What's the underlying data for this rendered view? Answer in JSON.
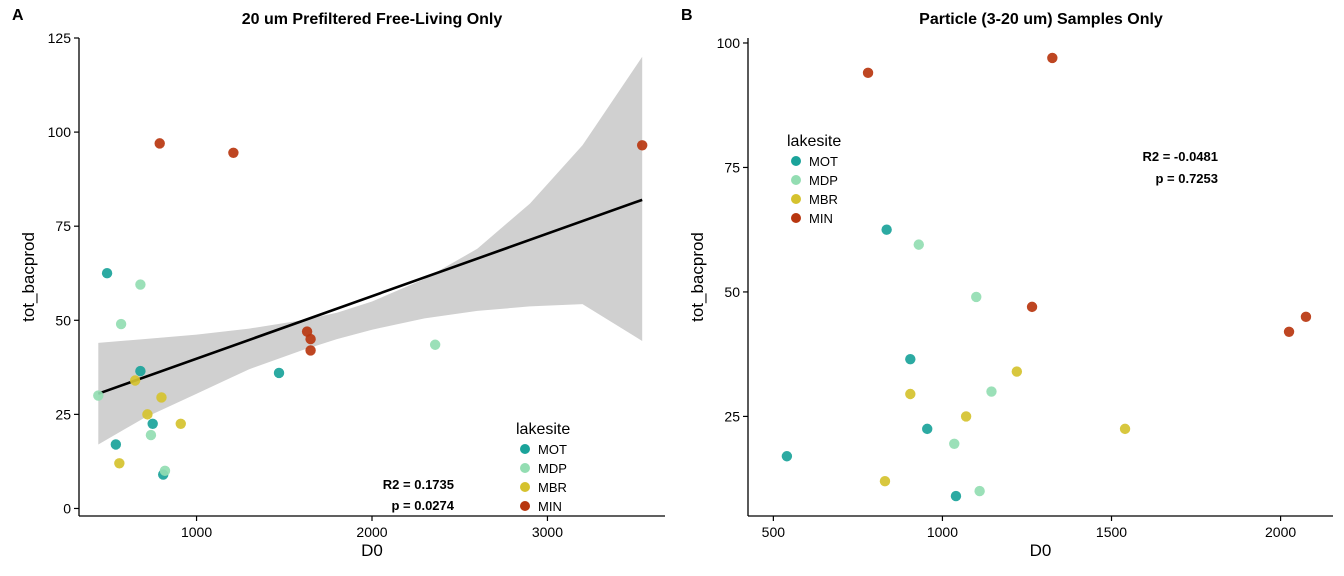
{
  "chart_data": [
    {
      "panel_tag": "A",
      "type": "scatter",
      "title": "20 um Prefiltered Free-Living Only",
      "xlabel": "D0",
      "ylabel": "tot_bacprod",
      "xlim": [
        330,
        3670
      ],
      "ylim": [
        -2,
        125
      ],
      "xticks": [
        1000,
        2000,
        3000
      ],
      "yticks": [
        0,
        25,
        50,
        75,
        100,
        125
      ],
      "grid": false,
      "legend": {
        "title": "lakesite",
        "placement": "bottom-right",
        "entries": [
          {
            "name": "MOT",
            "color": "#1AA39A"
          },
          {
            "name": "MDP",
            "color": "#93DDB2"
          },
          {
            "name": "MBR",
            "color": "#D5C22E"
          },
          {
            "name": "MIN",
            "color": "#B8360F"
          }
        ]
      },
      "annotations": [
        "R2 = 0.1735",
        "p = 0.0274"
      ],
      "regression": {
        "x0": 440,
        "y0": 30.5,
        "x1": 3540,
        "y1": 82,
        "band_color": "#D0D0D0",
        "band": [
          [
            440,
            44,
            17
          ],
          [
            700,
            45,
            24
          ],
          [
            1000,
            46.2,
            30.5
          ],
          [
            1300,
            47.8,
            37
          ],
          [
            1600,
            50,
            42
          ],
          [
            1800,
            52,
            45
          ],
          [
            2000,
            55,
            47.5
          ],
          [
            2300,
            61,
            50.5
          ],
          [
            2600,
            69,
            52.5
          ],
          [
            2900,
            81,
            53.7
          ],
          [
            3200,
            96.5,
            54.3
          ],
          [
            3540,
            120,
            44.5
          ]
        ]
      },
      "series": [
        {
          "name": "MOT",
          "color": "#1AA39A",
          "points": [
            [
              490,
              62.5
            ],
            [
              540,
              17
            ],
            [
              680,
              36.5
            ],
            [
              750,
              22.5
            ],
            [
              810,
              9
            ]
          ]
        },
        {
          "name": "MDP",
          "color": "#93DDB2",
          "points": [
            [
              440,
              30
            ],
            [
              570,
              49
            ],
            [
              680,
              59.5
            ],
            [
              740,
              19.5
            ],
            [
              820,
              10
            ],
            [
              2360,
              43.5
            ]
          ]
        },
        {
          "name": "MBR",
          "color": "#D5C22E",
          "points": [
            [
              560,
              12
            ],
            [
              650,
              34
            ],
            [
              720,
              25
            ],
            [
              800,
              29.5
            ],
            [
              910,
              22.5
            ]
          ]
        },
        {
          "name": "MIN",
          "color": "#B8360F",
          "points": [
            [
              790,
              97
            ],
            [
              1210,
              94.5
            ],
            [
              1630,
              47
            ],
            [
              1650,
              45
            ],
            [
              1650,
              42
            ],
            [
              3540,
              96.5
            ]
          ]
        },
        {
          "name": "MOT",
          "color": "#1AA39A",
          "points": [
            [
              1470,
              36
            ]
          ]
        }
      ]
    },
    {
      "panel_tag": "B",
      "type": "scatter",
      "title": "Particle (3-20 um) Samples Only",
      "xlabel": "D0",
      "ylabel": "tot_bacprod",
      "xlim": [
        425,
        2155
      ],
      "ylim": [
        5,
        101
      ],
      "xticks": [
        500,
        1000,
        1500,
        2000
      ],
      "yticks": [
        25,
        50,
        75,
        100
      ],
      "grid": false,
      "legend": {
        "title": "lakesite",
        "placement": "top-left",
        "entries": [
          {
            "name": "MOT",
            "color": "#1AA39A"
          },
          {
            "name": "MDP",
            "color": "#93DDB2"
          },
          {
            "name": "MBR",
            "color": "#D5C22E"
          },
          {
            "name": "MIN",
            "color": "#B8360F"
          }
        ]
      },
      "annotations": [
        "R2 = -0.0481",
        "p = 0.7253"
      ],
      "series": [
        {
          "name": "MOT",
          "color": "#1AA39A",
          "points": [
            [
              540,
              17
            ],
            [
              835,
              62.5
            ],
            [
              905,
              36.5
            ],
            [
              955,
              22.5
            ],
            [
              1040,
              9
            ]
          ]
        },
        {
          "name": "MDP",
          "color": "#93DDB2",
          "points": [
            [
              930,
              59.5
            ],
            [
              1035,
              19.5
            ],
            [
              1100,
              49
            ],
            [
              1110,
              10
            ],
            [
              1145,
              30
            ]
          ]
        },
        {
          "name": "MBR",
          "color": "#D5C22E",
          "points": [
            [
              830,
              12
            ],
            [
              905,
              29.5
            ],
            [
              1070,
              25
            ],
            [
              1220,
              34
            ],
            [
              1540,
              22.5
            ]
          ]
        },
        {
          "name": "MIN",
          "color": "#B8360F",
          "points": [
            [
              780,
              94
            ],
            [
              1265,
              47
            ],
            [
              1325,
              97
            ],
            [
              2025,
              42
            ],
            [
              2075,
              45
            ]
          ]
        }
      ]
    }
  ]
}
